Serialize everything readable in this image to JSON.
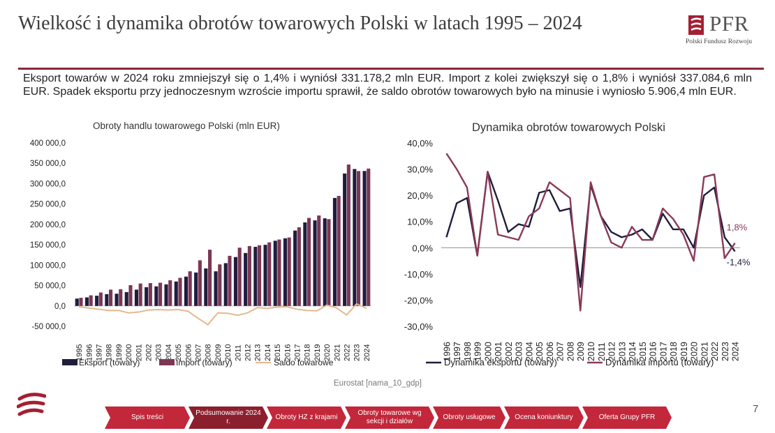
{
  "header": {
    "title": "Wielkość i dynamika obrotów towarowych Polski w latach 1995 – 2024",
    "logo_text": "PFR",
    "logo_subtitle": "Polski Fundusz Rozwoju"
  },
  "summary": "Eksport towarów w 2024 roku zmniejszył się o 1,4% i wyniósł 331.178,2 mln EUR. Import z kolei zwiększył się o 1,8% i wyniósł 337.084,6 mln EUR. Spadek eksportu przy jednoczesnym wzroście importu sprawił, że saldo obrotów towarowych było na minusie i wyniosło 5.906,4 mln EUR.",
  "chart_data": [
    {
      "type": "bar",
      "title": "Obroty handlu towarowego Polski (mln EUR)",
      "xlabel": "",
      "ylabel": "",
      "ylim": [
        -50000,
        400000
      ],
      "yticks": [
        "400 000,0",
        "350 000,0",
        "300 000,0",
        "250 000,0",
        "200 000,0",
        "150 000,0",
        "100 000,0",
        "50 000,0",
        "0,0",
        "-50 000,0"
      ],
      "categories": [
        "1995",
        "1996",
        "1997",
        "1998",
        "1999",
        "2000",
        "2001",
        "2002",
        "2003",
        "2004",
        "2005",
        "2006",
        "2007",
        "2008",
        "2009",
        "2010",
        "2011",
        "2012",
        "2013",
        "2014",
        "2015",
        "2016",
        "2017",
        "2018",
        "2019",
        "2020",
        "2021",
        "2022",
        "2023",
        "2024"
      ],
      "legend_position": "bottom",
      "series": [
        {
          "name": "Eksport (towary)",
          "type": "bar",
          "color": "#1f1d3d",
          "values": [
            18000,
            21000,
            25000,
            29000,
            30000,
            34000,
            40000,
            46000,
            48000,
            53000,
            60000,
            72000,
            82000,
            92000,
            85000,
            105000,
            120000,
            130000,
            145000,
            150000,
            160000,
            166000,
            185000,
            205000,
            210000,
            215000,
            265000,
            325000,
            336000,
            331178
          ]
        },
        {
          "name": "Import (towary)",
          "type": "bar",
          "color": "#7c3755",
          "values": [
            20000,
            26000,
            33000,
            40000,
            41000,
            51000,
            55000,
            56000,
            57000,
            63000,
            69000,
            85000,
            112000,
            138000,
            102000,
            123000,
            143000,
            147000,
            149000,
            156000,
            163000,
            168000,
            193000,
            216000,
            222000,
            213000,
            270000,
            347000,
            331000,
            337085
          ]
        },
        {
          "name": "Saldo towarowe",
          "type": "line",
          "color": "#e6b88e",
          "values": [
            -2000,
            -5000,
            -8000,
            -11000,
            -11000,
            -17000,
            -15000,
            -10000,
            -9000,
            -10000,
            -9000,
            -13000,
            -30000,
            -46000,
            -17000,
            -18000,
            -23000,
            -17000,
            -4000,
            -6000,
            -3000,
            -2000,
            -8000,
            -11000,
            -12000,
            2000,
            -5000,
            -22000,
            5000,
            -5906
          ]
        }
      ]
    },
    {
      "type": "line",
      "title": "Dynamika obrotów towarowych Polski",
      "xlabel": "",
      "ylabel": "",
      "ylim": [
        -30,
        40
      ],
      "yticks": [
        "40,0%",
        "30,0%",
        "20,0%",
        "10,0%",
        "0,0%",
        "-10,0%",
        "-20,0%",
        "-30,0%"
      ],
      "categories": [
        "1996",
        "1997",
        "1998",
        "1999",
        "2000",
        "2001",
        "2002",
        "2003",
        "2004",
        "2005",
        "2006",
        "2007",
        "2008",
        "2009",
        "2010",
        "2011",
        "2012",
        "2013",
        "2014",
        "2015",
        "2016",
        "2017",
        "2018",
        "2019",
        "2020",
        "2021",
        "2022",
        "2023",
        "2024"
      ],
      "legend_position": "bottom",
      "series": [
        {
          "name": "Dynamika eksportu (towary)",
          "color": "#1f1d3d",
          "values": [
            4,
            17,
            19,
            -3,
            29,
            18,
            6,
            9,
            8,
            21,
            22,
            14,
            15,
            -15,
            24,
            12,
            6,
            4,
            5,
            7,
            3,
            13,
            7,
            7,
            0,
            20,
            23,
            4,
            -1.4
          ]
        },
        {
          "name": "Dynamika importu (towary)",
          "color": "#8a3a57",
          "values": [
            36,
            30,
            23,
            -3,
            29,
            5,
            4,
            3,
            12,
            15,
            25,
            22,
            19,
            -24,
            25,
            12,
            2,
            0,
            8,
            3,
            3,
            15,
            11,
            5,
            -5,
            27,
            28,
            -4,
            1.8
          ]
        }
      ],
      "annotations": [
        {
          "text": "1,8%",
          "color": "#8a3a57",
          "series": 1,
          "x": "2024",
          "y": 1.8
        },
        {
          "text": "-1,4%",
          "color": "#1f1d3d",
          "series": 0,
          "x": "2024",
          "y": -1.4
        }
      ]
    }
  ],
  "source": "Eurostat [nama_10_gdp]",
  "page_number": "7",
  "nav": {
    "items": [
      {
        "label": "Spis treści",
        "active": false
      },
      {
        "label": "Podsumowanie 2024 r.",
        "active": true
      },
      {
        "label": "Obroty HZ z krajami",
        "active": false
      },
      {
        "label": "Obroty towarowe wg sekcji i działów",
        "active": false
      },
      {
        "label": "Obroty usługowe",
        "active": false
      },
      {
        "label": "Ocena koniunktury",
        "active": false
      },
      {
        "label": "Oferta Grupy PFR",
        "active": false
      }
    ]
  },
  "colors": {
    "accent": "#8b2639",
    "nav": "#c2273a",
    "nav_active": "#8c1f2e"
  }
}
